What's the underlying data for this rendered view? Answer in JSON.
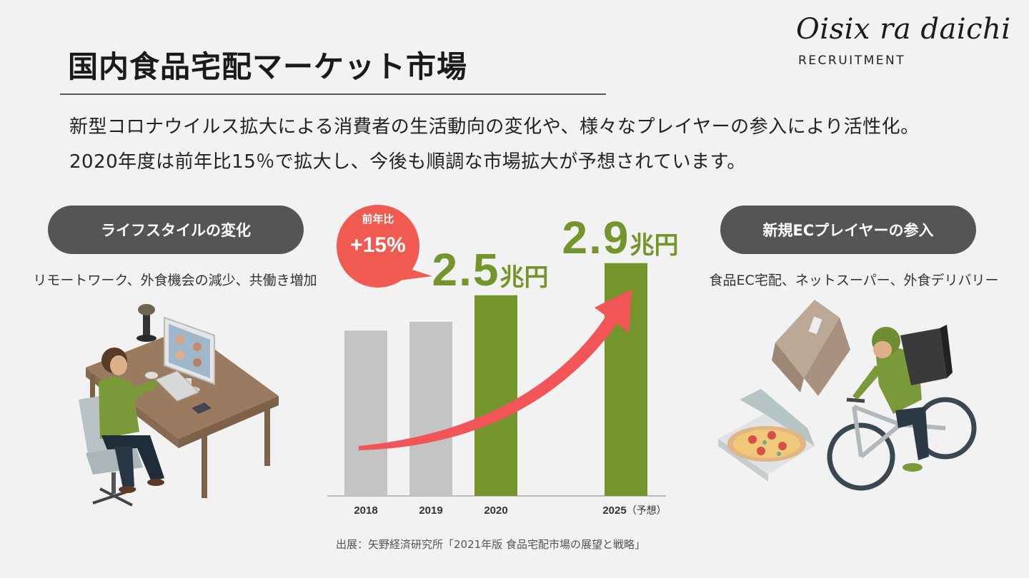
{
  "header": {
    "title": "国内食品宅配マーケット市場",
    "lead_line1": "新型コロナウイルス拡大による消費者の生活動向の変化や、様々なプレイヤーの参入により活性化。",
    "lead_line2": "2020年度は前年比15％で拡大し、今後も順調な市場拡大が予想されています。"
  },
  "logo": {
    "name": "Oisix ra daichi",
    "sub": "RECRUITMENT"
  },
  "left_panel": {
    "pill": "ライフスタイルの変化",
    "caption": "リモートワーク、外食機会の減少、共働き増加",
    "icon": "remote-work-desk-illustration"
  },
  "right_panel": {
    "pill": "新規ECプレイヤーの参入",
    "caption": "食品EC宅配、ネットスーパー、外食デリバリー",
    "icon": "delivery-bicycle-illustration"
  },
  "chart_data": {
    "type": "bar",
    "categories": [
      "2018",
      "2019",
      "2020",
      "2025"
    ],
    "category_suffix": [
      "",
      "",
      "",
      "（予想）"
    ],
    "values": [
      2.06,
      2.17,
      2.5,
      2.9
    ],
    "value_labels": [
      "",
      "",
      "2.5",
      "2.9"
    ],
    "unit": "兆円",
    "ylim": [
      0,
      3.2
    ],
    "bar_colors": [
      "#c4c4c4",
      "#c4c4c4",
      "#74942c",
      "#74942c"
    ],
    "annotation": {
      "label": "前年比",
      "value": "+15%",
      "color": "#f05a50"
    },
    "arrow_color": "#f25558",
    "grid": false
  },
  "source": "出展：矢野経済研究所「2021年版 食品宅配市場の展望と戦略」"
}
